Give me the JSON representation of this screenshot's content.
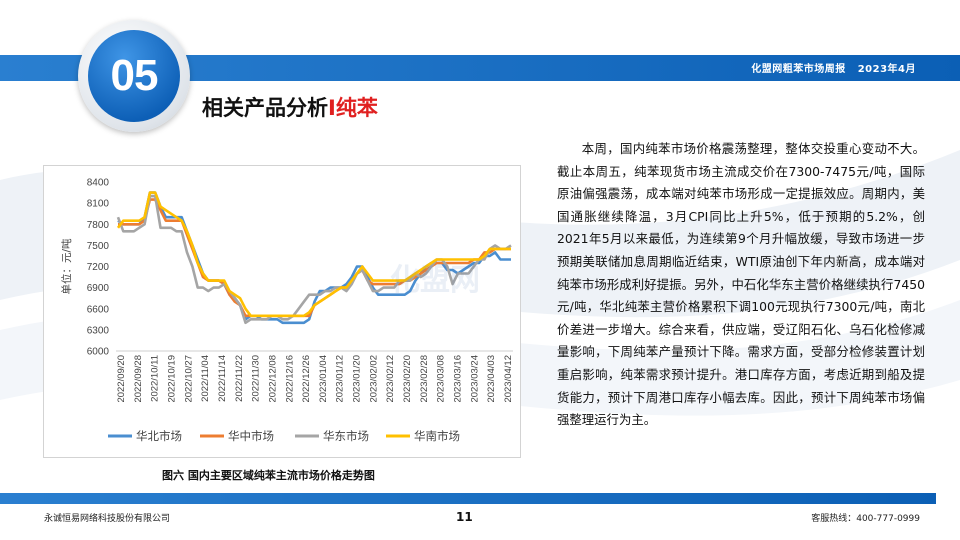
{
  "header": {
    "report_title": "化盟网粗苯市场周报",
    "report_date": "2023年4月",
    "section_number": "05",
    "section_title_main": "相关产品分析",
    "section_title_sep": "I",
    "section_title_accent": "纯苯"
  },
  "watermark": "化盟网",
  "chart_caption": "图六 国内主要区域纯苯主流市场价格走势图",
  "body_text": "本周，国内纯苯市场价格震荡整理，整体交投重心变动不大。截止本周五，纯苯现货市场主流成交价在7300-7475元/吨，国际原油偏强震荡，成本端对纯苯市场形成一定提振效应。周期内，美国通胀继续降温，3月CPI同比上升5%，低于预期的5.2%，创2021年5月以来最低，为连续第9个月升幅放缓，导致市场进一步预期美联储加息周期临近结束，WTI原油创下年内新高，成本端对纯苯市场形成利好提振。另外，中石化华东主营价格继续执行7450元/吨，华北纯苯主营价格累积下调100元现执行7300元/吨，南北价差进一步增大。综合来看，供应端，受辽阳石化、乌石化检修减量影响，下周纯苯产量预计下降。需求方面，受部分检修装置计划重启影响，纯苯需求预计提升。港口库存方面，考虑近期到船及提货能力，预计下周港口库存小幅去库。因此，预计下周纯苯市场偏强整理运行为主。",
  "footer": {
    "company": "永诚恒易网络科技股份有限公司",
    "page": "11",
    "hotline": "客服热线：400-777-0999"
  },
  "chart_data": {
    "type": "line",
    "ylabel": "单位：元/吨",
    "ylim": [
      6000,
      8400
    ],
    "yticks": [
      6000,
      6300,
      6600,
      6900,
      7200,
      7500,
      7800,
      8100,
      8400
    ],
    "grid": false,
    "legend_position": "bottom",
    "x_tick_labels": [
      "2022/09/20",
      "2022/09/28",
      "2022/10/11",
      "2022/10/19",
      "2022/10/27",
      "2022/11/04",
      "2022/11/14",
      "2022/11/22",
      "2022/11/30",
      "2022/12/08",
      "2022/12/16",
      "2022/12/26",
      "2023/01/04",
      "2023/01/12",
      "2023/01/20",
      "2023/02/02",
      "2023/02/12",
      "2023/02/20",
      "2023/02/28",
      "2023/03/08",
      "2023/03/16",
      "2023/03/24",
      "2023/04/03",
      "2023/04/12"
    ],
    "series": [
      {
        "name": "华北市场",
        "color": "#4a8ed0",
        "values": [
          7850,
          7800,
          7800,
          7800,
          7800,
          7900,
          8250,
          8250,
          8050,
          7900,
          7900,
          7900,
          7900,
          7700,
          7500,
          7300,
          7100,
          7000,
          7000,
          7000,
          6950,
          6800,
          6750,
          6650,
          6450,
          6500,
          6500,
          6450,
          6450,
          6450,
          6450,
          6400,
          6400,
          6400,
          6400,
          6400,
          6450,
          6700,
          6850,
          6850,
          6900,
          6900,
          6900,
          6950,
          7050,
          7200,
          7200,
          7050,
          6900,
          6800,
          6800,
          6800,
          6800,
          6800,
          6800,
          6850,
          7000,
          7100,
          7200,
          7250,
          7250,
          7250,
          7150,
          7150,
          7100,
          7150,
          7200,
          7250,
          7250,
          7350,
          7350,
          7400,
          7300,
          7300,
          7300
        ]
      },
      {
        "name": "华中市场",
        "color": "#ed7d31",
        "values": [
          7800,
          7800,
          7800,
          7800,
          7800,
          7850,
          8150,
          8150,
          8000,
          7850,
          7850,
          7850,
          7850,
          7650,
          7450,
          7250,
          7050,
          7000,
          7000,
          7000,
          6950,
          6800,
          6700,
          6650,
          6500,
          6500,
          6500,
          6500,
          6500,
          6500,
          6500,
          6500,
          6500,
          6500,
          6500,
          6500,
          6500,
          6650,
          6700,
          6750,
          6800,
          6850,
          6900,
          6900,
          7000,
          7100,
          7150,
          7000,
          6950,
          6950,
          6950,
          6950,
          6950,
          6950,
          7000,
          7000,
          7050,
          7100,
          7150,
          7200,
          7250,
          7250,
          7250,
          7250,
          7250,
          7250,
          7250,
          7300,
          7300,
          7400,
          7400,
          7450,
          7450,
          7450,
          7450
        ]
      },
      {
        "name": "华东市场",
        "color": "#a5a5a5",
        "values": [
          7900,
          7700,
          7700,
          7700,
          7750,
          7800,
          8200,
          8200,
          7750,
          7750,
          7750,
          7700,
          7700,
          7400,
          7200,
          6900,
          6900,
          6850,
          6900,
          6900,
          6950,
          6850,
          6750,
          6650,
          6400,
          6450,
          6450,
          6450,
          6450,
          6500,
          6500,
          6450,
          6450,
          6500,
          6600,
          6700,
          6800,
          6800,
          6800,
          6850,
          6850,
          6900,
          6900,
          6850,
          6950,
          7100,
          7150,
          7000,
          6850,
          6850,
          6900,
          6900,
          6900,
          7000,
          7000,
          7000,
          7100,
          7050,
          7100,
          7200,
          7300,
          7300,
          7200,
          6950,
          7100,
          7100,
          7100,
          7200,
          7300,
          7300,
          7450,
          7500,
          7450,
          7450,
          7500
        ]
      },
      {
        "name": "华南市场",
        "color": "#ffc000",
        "values": [
          7750,
          7850,
          7850,
          7850,
          7850,
          7900,
          8250,
          8250,
          8050,
          8000,
          7950,
          7900,
          7850,
          7700,
          7500,
          7250,
          7100,
          7000,
          7000,
          7000,
          7000,
          6850,
          6800,
          6750,
          6600,
          6500,
          6500,
          6500,
          6500,
          6500,
          6500,
          6500,
          6500,
          6500,
          6500,
          6500,
          6550,
          6650,
          6700,
          6750,
          6800,
          6850,
          6900,
          6900,
          7000,
          7100,
          7200,
          7100,
          7000,
          7000,
          7000,
          7000,
          7000,
          7000,
          7000,
          7050,
          7100,
          7150,
          7200,
          7250,
          7300,
          7300,
          7300,
          7300,
          7300,
          7300,
          7300,
          7300,
          7300,
          7350,
          7450,
          7450,
          7450,
          7450,
          7450
        ]
      }
    ]
  }
}
